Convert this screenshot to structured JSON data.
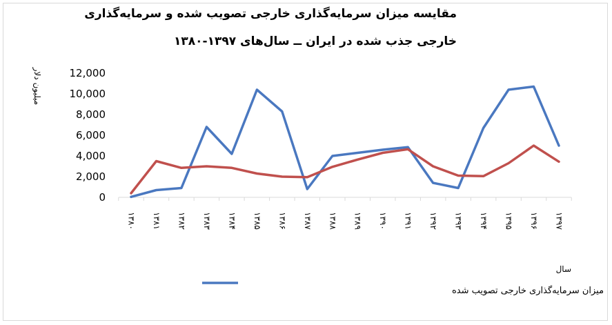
{
  "title": {
    "line1": "مقایسه میزان سرمایه‌گذاری خارجی تصویب شده و سرمایه‌گذاری",
    "line2": "خارجی جذب شده در ایران ــ سال‌های ۱۳۹۷-۱۳۸۰"
  },
  "chart_data": {
    "type": "line",
    "categories": [
      "۱۳۸۰",
      "۱۳۸۱",
      "۱۳۸۲",
      "۱۳۸۳",
      "۱۳۸۴",
      "۱۳۸۵",
      "۱۳۸۶",
      "۱۳۸۷",
      "۱۳۸۸",
      "۱۳۸۹",
      "۱۳۹۰",
      "۱۳۹۱",
      "۱۳۹۲",
      "۱۳۹۳",
      "۱۳۹۴",
      "۱۳۹۵",
      "۱۳۹۶",
      "۱۳۹۷"
    ],
    "xlabel": "سال",
    "ylabel": "میلیون دلار",
    "ylim": [
      0,
      12000
    ],
    "yticks": [
      0,
      2000,
      4000,
      6000,
      8000,
      10000,
      12000
    ],
    "ytick_labels": [
      "0",
      "2,000",
      "4,000",
      "6,000",
      "8,000",
      "10,000",
      "12,000"
    ],
    "grid": false,
    "legend_position": "bottom",
    "series": [
      {
        "name": "میزان سرمایه‌گذاری خارجی تصویب شده",
        "color": "#4a78c0",
        "values": [
          50,
          700,
          900,
          6800,
          4200,
          10400,
          8300,
          800,
          4000,
          4300,
          4600,
          4850,
          1400,
          900,
          6700,
          10400,
          10700,
          5000
        ],
        "in_legend": true
      },
      {
        "color": "#c0504d",
        "values": [
          400,
          3500,
          2850,
          3000,
          2850,
          2300,
          2000,
          1950,
          2950,
          3650,
          4300,
          4650,
          3000,
          2100,
          2050,
          3300,
          5000,
          3450
        ],
        "in_legend": false
      }
    ]
  }
}
